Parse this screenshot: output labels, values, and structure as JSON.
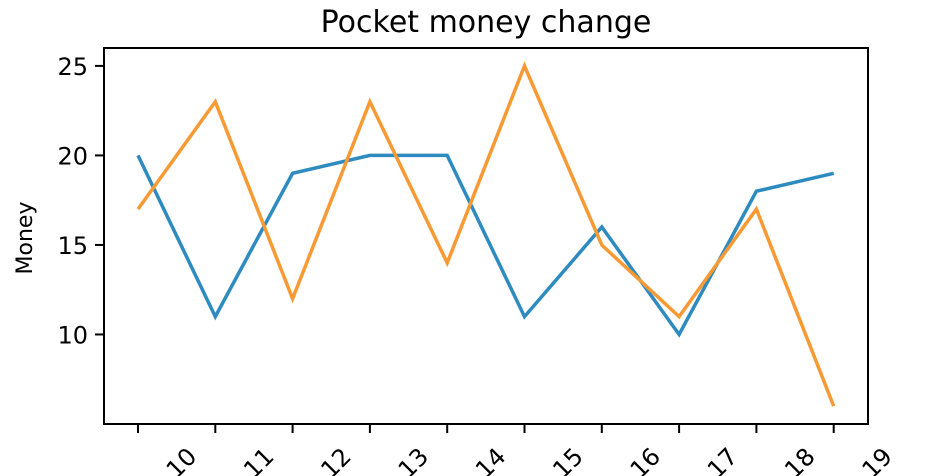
{
  "chart_data": {
    "type": "line",
    "title": "Pocket money change",
    "xlabel": "",
    "ylabel": "Money",
    "x": [
      "10",
      "11",
      "12",
      "13",
      "14",
      "15",
      "16",
      "17",
      "18",
      "19"
    ],
    "y_ticks": [
      10,
      15,
      20,
      25
    ],
    "ylim": [
      5,
      26
    ],
    "grid": false,
    "legend": "none",
    "series": [
      {
        "values": [
          20,
          11,
          19,
          20,
          20,
          11,
          16,
          10,
          18,
          19
        ],
        "color": "#2e8bc0"
      },
      {
        "values": [
          17,
          23,
          12,
          23,
          14,
          25,
          15,
          11,
          17,
          6
        ],
        "color": "#f89a34"
      }
    ]
  }
}
